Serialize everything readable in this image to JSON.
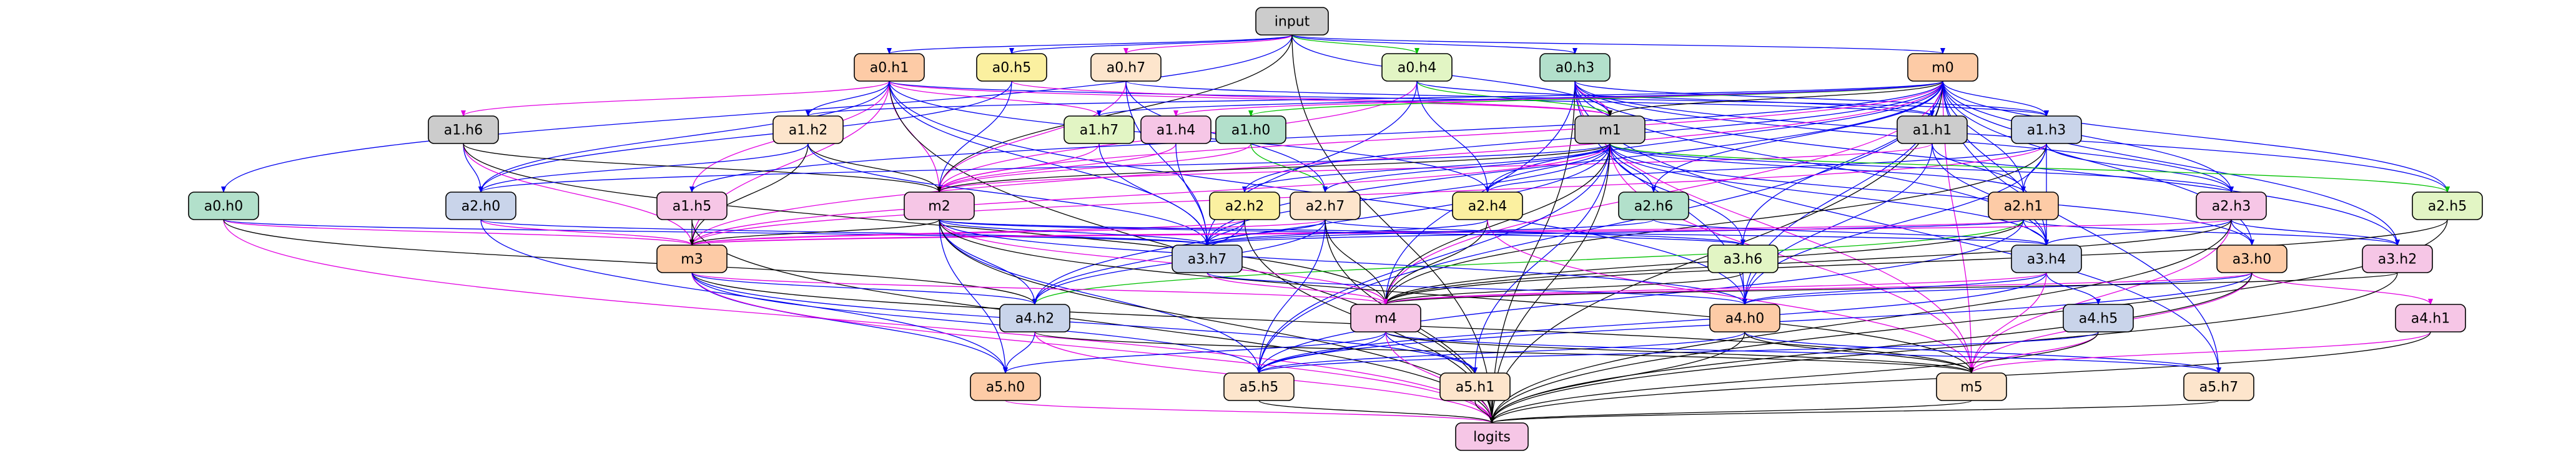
{
  "graph": {
    "colors": {
      "blue": "#0000ee",
      "magenta": "#e100e1",
      "green": "#00c000",
      "black": "#000000",
      "pink_fill": "#f6c6e6",
      "peach_fill": "#fdcba6",
      "grey_fill": "#cccccc",
      "yellow_fill": "#fbf0a0",
      "lightgreen_fill": "#e2f5c4",
      "teal_fill": "#b2e0cb",
      "blue_fill": "#c9d4ea",
      "cream_fill": "#fde5cc"
    },
    "nodes": [
      {
        "id": "input",
        "label": "input",
        "fill": "grey_fill"
      },
      {
        "id": "a0h0",
        "label": "a0.h0",
        "fill": "teal_fill"
      },
      {
        "id": "a0h1",
        "label": "a0.h1",
        "fill": "peach_fill"
      },
      {
        "id": "a0h3",
        "label": "a0.h3",
        "fill": "teal_fill"
      },
      {
        "id": "a0h4",
        "label": "a0.h4",
        "fill": "lightgreen_fill"
      },
      {
        "id": "a0h5",
        "label": "a0.h5",
        "fill": "yellow_fill"
      },
      {
        "id": "a0h7",
        "label": "a0.h7",
        "fill": "cream_fill"
      },
      {
        "id": "m0",
        "label": "m0",
        "fill": "peach_fill"
      },
      {
        "id": "a1h0",
        "label": "a1.h0",
        "fill": "teal_fill"
      },
      {
        "id": "a1h1",
        "label": "a1.h1",
        "fill": "grey_fill"
      },
      {
        "id": "a1h2",
        "label": "a1.h2",
        "fill": "cream_fill"
      },
      {
        "id": "a1h3",
        "label": "a1.h3",
        "fill": "blue_fill"
      },
      {
        "id": "a1h4",
        "label": "a1.h4",
        "fill": "pink_fill"
      },
      {
        "id": "a1h5",
        "label": "a1.h5",
        "fill": "pink_fill"
      },
      {
        "id": "a1h6",
        "label": "a1.h6",
        "fill": "grey_fill"
      },
      {
        "id": "a1h7",
        "label": "a1.h7",
        "fill": "lightgreen_fill"
      },
      {
        "id": "m1",
        "label": "m1",
        "fill": "grey_fill"
      },
      {
        "id": "a2h0",
        "label": "a2.h0",
        "fill": "blue_fill"
      },
      {
        "id": "a2h1",
        "label": "a2.h1",
        "fill": "peach_fill"
      },
      {
        "id": "a2h2",
        "label": "a2.h2",
        "fill": "yellow_fill"
      },
      {
        "id": "a2h3",
        "label": "a2.h3",
        "fill": "pink_fill"
      },
      {
        "id": "a2h4",
        "label": "a2.h4",
        "fill": "yellow_fill"
      },
      {
        "id": "a2h5",
        "label": "a2.h5",
        "fill": "lightgreen_fill"
      },
      {
        "id": "a2h6",
        "label": "a2.h6",
        "fill": "teal_fill"
      },
      {
        "id": "a2h7",
        "label": "a2.h7",
        "fill": "cream_fill"
      },
      {
        "id": "m2",
        "label": "m2",
        "fill": "pink_fill"
      },
      {
        "id": "a3h0",
        "label": "a3.h0",
        "fill": "peach_fill"
      },
      {
        "id": "a3h2",
        "label": "a3.h2",
        "fill": "pink_fill"
      },
      {
        "id": "a3h4",
        "label": "a3.h4",
        "fill": "blue_fill"
      },
      {
        "id": "a3h6",
        "label": "a3.h6",
        "fill": "lightgreen_fill"
      },
      {
        "id": "a3h7",
        "label": "a3.h7",
        "fill": "blue_fill"
      },
      {
        "id": "m3",
        "label": "m3",
        "fill": "peach_fill"
      },
      {
        "id": "a4h0",
        "label": "a4.h0",
        "fill": "peach_fill"
      },
      {
        "id": "a4h1",
        "label": "a4.h1",
        "fill": "pink_fill"
      },
      {
        "id": "a4h2",
        "label": "a4.h2",
        "fill": "blue_fill"
      },
      {
        "id": "a4h5",
        "label": "a4.h5",
        "fill": "blue_fill"
      },
      {
        "id": "m4",
        "label": "m4",
        "fill": "pink_fill"
      },
      {
        "id": "a5h0",
        "label": "a5.h0",
        "fill": "peach_fill"
      },
      {
        "id": "a5h1",
        "label": "a5.h1",
        "fill": "cream_fill"
      },
      {
        "id": "a5h5",
        "label": "a5.h5",
        "fill": "cream_fill"
      },
      {
        "id": "a5h7",
        "label": "a5.h7",
        "fill": "cream_fill"
      },
      {
        "id": "m5",
        "label": "m5",
        "fill": "cream_fill"
      },
      {
        "id": "logits",
        "label": "logits",
        "fill": "pink_fill"
      }
    ],
    "edges": [
      [
        "input",
        "a0h0",
        "blue"
      ],
      [
        "input",
        "a0h1",
        "blue"
      ],
      [
        "input",
        "a0h3",
        "blue"
      ],
      [
        "input",
        "a0h4",
        "green"
      ],
      [
        "input",
        "a0h5",
        "blue"
      ],
      [
        "input",
        "a0h7",
        "magenta"
      ],
      [
        "input",
        "m0",
        "blue"
      ],
      [
        "input",
        "m1",
        "blue"
      ],
      [
        "input",
        "logits",
        "black"
      ],
      [
        "input",
        "m2",
        "black"
      ],
      [
        "a0h0",
        "m3",
        "magenta"
      ],
      [
        "a0h0",
        "a3h7",
        "blue"
      ],
      [
        "a0h0",
        "logits",
        "magenta"
      ],
      [
        "a0h0",
        "a4h2",
        "black"
      ],
      [
        "a0h1",
        "a1h2",
        "blue"
      ],
      [
        "a0h1",
        "a1h6",
        "magenta"
      ],
      [
        "a0h1",
        "a1h5",
        "magenta"
      ],
      [
        "a0h1",
        "m2",
        "magenta"
      ],
      [
        "a0h1",
        "m1",
        "magenta"
      ],
      [
        "a0h1",
        "a1h7",
        "magenta"
      ],
      [
        "a0h1",
        "a2h4",
        "blue"
      ],
      [
        "a0h1",
        "m3",
        "magenta"
      ],
      [
        "a0h1",
        "logits",
        "black"
      ],
      [
        "a0h1",
        "a3h7",
        "blue"
      ],
      [
        "a0h1",
        "a4h0",
        "blue"
      ],
      [
        "a0h1",
        "a2h0",
        "blue"
      ],
      [
        "a0h1",
        "a1h1",
        "blue"
      ],
      [
        "a0h3",
        "a1h3",
        "blue"
      ],
      [
        "a0h3",
        "a2h3",
        "blue"
      ],
      [
        "a0h3",
        "a2h5",
        "blue"
      ],
      [
        "a0h3",
        "m5",
        "magenta"
      ],
      [
        "a0h3",
        "a5h7",
        "blue"
      ],
      [
        "a0h3",
        "logits",
        "black"
      ],
      [
        "a0h3",
        "m4",
        "blue"
      ],
      [
        "a0h3",
        "a4h0",
        "blue"
      ],
      [
        "a0h3",
        "a3h2",
        "blue"
      ],
      [
        "a0h3",
        "m1",
        "magenta"
      ],
      [
        "a0h3",
        "a3h4",
        "blue"
      ],
      [
        "a0h4",
        "m1",
        "green"
      ],
      [
        "a0h4",
        "m2",
        "magenta"
      ],
      [
        "a0h4",
        "a2h4",
        "blue"
      ],
      [
        "a0h4",
        "a1h1",
        "blue"
      ],
      [
        "a0h4",
        "a3h7",
        "blue"
      ],
      [
        "a0h5",
        "m2",
        "blue"
      ],
      [
        "a0h5",
        "a2h0",
        "blue"
      ],
      [
        "a0h5",
        "m1",
        "magenta"
      ],
      [
        "a0h7",
        "a2h7",
        "blue"
      ],
      [
        "a0h7",
        "a1h3",
        "blue"
      ],
      [
        "a0h7",
        "m2",
        "magenta"
      ],
      [
        "a0h7",
        "a3h7",
        "blue"
      ],
      [
        "m0",
        "m1",
        "black"
      ],
      [
        "m0",
        "a1h0",
        "green"
      ],
      [
        "m0",
        "a1h1",
        "blue"
      ],
      [
        "m0",
        "a1h2",
        "blue"
      ],
      [
        "m0",
        "a1h3",
        "blue"
      ],
      [
        "m0",
        "a1h4",
        "magenta"
      ],
      [
        "m0",
        "a1h5",
        "blue"
      ],
      [
        "m0",
        "a1h7",
        "blue"
      ],
      [
        "m0",
        "a2h1",
        "blue"
      ],
      [
        "m0",
        "a2h3",
        "blue"
      ],
      [
        "m0",
        "a2h5",
        "blue"
      ],
      [
        "m0",
        "a2h6",
        "blue"
      ],
      [
        "m0",
        "a3h0",
        "blue"
      ],
      [
        "m0",
        "a3h2",
        "blue"
      ],
      [
        "m0",
        "a3h4",
        "blue"
      ],
      [
        "m0",
        "a3h7",
        "blue"
      ],
      [
        "m0",
        "m3",
        "magenta"
      ],
      [
        "m0",
        "m4",
        "magenta"
      ],
      [
        "m0",
        "a4h0",
        "blue"
      ],
      [
        "m0",
        "m5",
        "magenta"
      ],
      [
        "m0",
        "logits",
        "black"
      ],
      [
        "m0",
        "a5h5",
        "blue"
      ],
      [
        "m0",
        "a5h7",
        "blue"
      ],
      [
        "m0",
        "m2",
        "magenta"
      ],
      [
        "m0",
        "a2h2",
        "blue"
      ],
      [
        "m0",
        "a2h4",
        "blue"
      ],
      [
        "m0",
        "a3h6",
        "blue"
      ],
      [
        "a1h0",
        "m2",
        "magenta"
      ],
      [
        "a1h0",
        "a2h7",
        "green"
      ],
      [
        "a1h1",
        "a2h1",
        "blue"
      ],
      [
        "a1h1",
        "a3h4",
        "blue"
      ],
      [
        "a1h1",
        "m2",
        "magenta"
      ],
      [
        "a1h1",
        "a4h0",
        "blue"
      ],
      [
        "a1h2",
        "m2",
        "black"
      ],
      [
        "a1h2",
        "m3",
        "black"
      ],
      [
        "a1h2",
        "a2h0",
        "blue"
      ],
      [
        "a1h2",
        "a3h7",
        "blue"
      ],
      [
        "a1h3",
        "a2h1",
        "blue"
      ],
      [
        "a1h3",
        "a2h3",
        "blue"
      ],
      [
        "a1h3",
        "a2h4",
        "blue"
      ],
      [
        "a1h3",
        "m3",
        "magenta"
      ],
      [
        "a1h3",
        "a3h4",
        "blue"
      ],
      [
        "a1h3",
        "m4",
        "black"
      ],
      [
        "a1h3",
        "a4h0",
        "blue"
      ],
      [
        "a1h4",
        "m2",
        "magenta"
      ],
      [
        "a1h4",
        "a3h7",
        "blue"
      ],
      [
        "a1h5",
        "m3",
        "black"
      ],
      [
        "a1h5",
        "logits",
        "black"
      ],
      [
        "a1h6",
        "a2h0",
        "blue"
      ],
      [
        "a1h6",
        "m2",
        "black"
      ],
      [
        "a1h6",
        "m3",
        "magenta"
      ],
      [
        "a1h6",
        "m4",
        "black"
      ],
      [
        "a1h7",
        "m2",
        "magenta"
      ],
      [
        "a1h7",
        "a3h7",
        "blue"
      ],
      [
        "m1",
        "m2",
        "black"
      ],
      [
        "m1",
        "a2h0",
        "blue"
      ],
      [
        "m1",
        "a2h1",
        "blue"
      ],
      [
        "m1",
        "a2h2",
        "blue"
      ],
      [
        "m1",
        "a2h3",
        "blue"
      ],
      [
        "m1",
        "a2h4",
        "blue"
      ],
      [
        "m1",
        "a2h5",
        "green"
      ],
      [
        "m1",
        "a2h6",
        "blue"
      ],
      [
        "m1",
        "a2h7",
        "blue"
      ],
      [
        "m1",
        "a3h0",
        "blue"
      ],
      [
        "m1",
        "a3h4",
        "blue"
      ],
      [
        "m1",
        "a3h6",
        "blue"
      ],
      [
        "m1",
        "a3h7",
        "blue"
      ],
      [
        "m1",
        "m3",
        "magenta"
      ],
      [
        "m1",
        "m4",
        "black"
      ],
      [
        "m1",
        "a4h2",
        "blue"
      ],
      [
        "m1",
        "m5",
        "magenta"
      ],
      [
        "m1",
        "a5h1",
        "blue"
      ],
      [
        "m1",
        "a5h5",
        "blue"
      ],
      [
        "m1",
        "logits",
        "black"
      ],
      [
        "a2h0",
        "m3",
        "magenta"
      ],
      [
        "a2h0",
        "a3h7",
        "blue"
      ],
      [
        "a2h0",
        "a5h0",
        "blue"
      ],
      [
        "a2h1",
        "m3",
        "magenta"
      ],
      [
        "a2h1",
        "a3h4",
        "blue"
      ],
      [
        "a2h1",
        "a3h7",
        "blue"
      ],
      [
        "a2h1",
        "m4",
        "black"
      ],
      [
        "a2h1",
        "a4h2",
        "green"
      ],
      [
        "a2h1",
        "a5h5",
        "blue"
      ],
      [
        "a2h1",
        "a3h2",
        "blue"
      ],
      [
        "a2h2",
        "m3",
        "magenta"
      ],
      [
        "a2h2",
        "a3h7",
        "blue"
      ],
      [
        "a2h2",
        "a4h2",
        "blue"
      ],
      [
        "a2h2",
        "logits",
        "black"
      ],
      [
        "a2h3",
        "a3h0",
        "blue"
      ],
      [
        "a2h3",
        "a3h2",
        "blue"
      ],
      [
        "a2h3",
        "a3h4",
        "blue"
      ],
      [
        "a2h3",
        "m3",
        "magenta"
      ],
      [
        "a2h3",
        "m4",
        "black"
      ],
      [
        "a2h3",
        "m5",
        "magenta"
      ],
      [
        "a2h3",
        "logits",
        "black"
      ],
      [
        "a2h4",
        "m4",
        "black"
      ],
      [
        "a2h4",
        "a3h7",
        "blue"
      ],
      [
        "a2h4",
        "m5",
        "magenta"
      ],
      [
        "a2h5",
        "logits",
        "black"
      ],
      [
        "a2h5",
        "m4",
        "black"
      ],
      [
        "a2h6",
        "a3h4",
        "blue"
      ],
      [
        "a2h6",
        "a3h7",
        "blue"
      ],
      [
        "a2h7",
        "m3",
        "magenta"
      ],
      [
        "a2h7",
        "a3h7",
        "blue"
      ],
      [
        "a2h7",
        "logits",
        "black"
      ],
      [
        "a2h7",
        "a4h2",
        "blue"
      ],
      [
        "a2h7",
        "a5h5",
        "blue"
      ],
      [
        "a2h7",
        "m4",
        "black"
      ],
      [
        "a2h7",
        "a3h6",
        "blue"
      ],
      [
        "m2",
        "m3",
        "black"
      ],
      [
        "m2",
        "a3h7",
        "blue"
      ],
      [
        "m2",
        "a4h2",
        "blue"
      ],
      [
        "m2",
        "m4",
        "magenta"
      ],
      [
        "m2",
        "a4h0",
        "blue"
      ],
      [
        "m2",
        "a5h0",
        "blue"
      ],
      [
        "m2",
        "a5h5",
        "blue"
      ],
      [
        "m2",
        "m5",
        "black"
      ],
      [
        "m2",
        "logits",
        "black"
      ],
      [
        "m2",
        "a3h6",
        "blue"
      ],
      [
        "m2",
        "a3h4",
        "blue"
      ],
      [
        "a3h0",
        "a4h0",
        "blue"
      ],
      [
        "a3h0",
        "a4h1",
        "magenta"
      ],
      [
        "a3h0",
        "m4",
        "magenta"
      ],
      [
        "a3h0",
        "m5",
        "magenta"
      ],
      [
        "a3h0",
        "a5h5",
        "blue"
      ],
      [
        "a3h0",
        "logits",
        "black"
      ],
      [
        "a3h2",
        "m4",
        "black"
      ],
      [
        "a3h2",
        "logits",
        "black"
      ],
      [
        "a3h4",
        "a4h0",
        "blue"
      ],
      [
        "a3h4",
        "a4h5",
        "blue"
      ],
      [
        "a3h4",
        "m4",
        "magenta"
      ],
      [
        "a3h4",
        "a5h5",
        "blue"
      ],
      [
        "a3h4",
        "m5",
        "magenta"
      ],
      [
        "a3h6",
        "a4h0",
        "blue"
      ],
      [
        "a3h6",
        "m4",
        "black"
      ],
      [
        "a3h7",
        "m4",
        "magenta"
      ],
      [
        "a3h7",
        "a4h0",
        "blue"
      ],
      [
        "m3",
        "m4",
        "magenta"
      ],
      [
        "m3",
        "a4h2",
        "blue"
      ],
      [
        "m3",
        "a5h0",
        "blue"
      ],
      [
        "m3",
        "a5h5",
        "blue"
      ],
      [
        "m3",
        "m5",
        "black"
      ],
      [
        "m3",
        "logits",
        "magenta"
      ],
      [
        "m3",
        "a5h1",
        "blue"
      ],
      [
        "a4h0",
        "a5h5",
        "blue"
      ],
      [
        "a4h0",
        "m5",
        "black"
      ],
      [
        "a4h0",
        "a5h7",
        "blue"
      ],
      [
        "a4h0",
        "logits",
        "black"
      ],
      [
        "a4h1",
        "m5",
        "magenta"
      ],
      [
        "a4h1",
        "logits",
        "black"
      ],
      [
        "a4h2",
        "a5h0",
        "blue"
      ],
      [
        "a4h2",
        "m5",
        "black"
      ],
      [
        "a4h2",
        "logits",
        "magenta"
      ],
      [
        "a4h5",
        "m5",
        "magenta"
      ],
      [
        "a4h5",
        "logits",
        "black"
      ],
      [
        "a4h5",
        "a5h5",
        "blue"
      ],
      [
        "m4",
        "m5",
        "black"
      ],
      [
        "m4",
        "a5h0",
        "blue"
      ],
      [
        "m4",
        "a5h5",
        "blue"
      ],
      [
        "m4",
        "a5h1",
        "blue"
      ],
      [
        "m4",
        "a5h7",
        "blue"
      ],
      [
        "m4",
        "logits",
        "magenta"
      ],
      [
        "a5h0",
        "logits",
        "magenta"
      ],
      [
        "a5h1",
        "logits",
        "black"
      ],
      [
        "a5h5",
        "logits",
        "black"
      ],
      [
        "a5h7",
        "logits",
        "black"
      ],
      [
        "m5",
        "logits",
        "black"
      ]
    ]
  }
}
